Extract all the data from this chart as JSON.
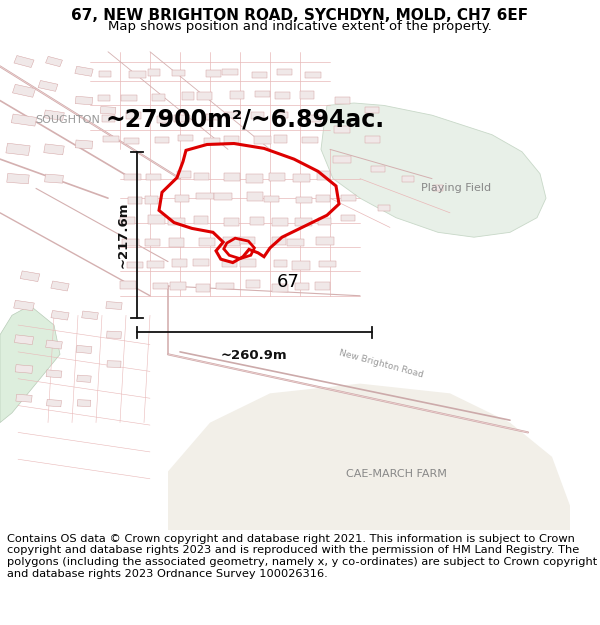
{
  "title_line1": "67, NEW BRIGHTON ROAD, SYCHDYN, MOLD, CH7 6EF",
  "title_line2": "Map shows position and indicative extent of the property.",
  "footer_text": "Contains OS data © Crown copyright and database right 2021. This information is subject to Crown copyright and database rights 2023 and is reproduced with the permission of HM Land Registry. The polygons (including the associated geometry, namely x, y co-ordinates) are subject to Crown copyright and database rights 2023 Ordnance Survey 100026316.",
  "area_label": "~27900m²/~6.894ac.",
  "soughton_label": "SOUGHTON",
  "playing_field_label": "Playing Field",
  "cae_march_label": "CAE-MARCH FARM",
  "label_67": "67",
  "dim_vertical": "~217.6m",
  "dim_horizontal": "~260.9m",
  "map_bg": "#f9f6f2",
  "road_color": "#e8b8b8",
  "building_color": "#e8c8c8",
  "building_outline": "#d4a4a4",
  "polygon_color": "#dd0000",
  "playing_field_color": "#e8f0e8",
  "playing_field_edge": "#c8d8c8",
  "green_area_color": "#e4ede4",
  "dim_color": "#111111",
  "label_color": "#666666",
  "title_fontsize": 11,
  "subtitle_fontsize": 10,
  "footer_fontsize": 8.5,
  "fig_width": 6.0,
  "fig_height": 6.25,
  "dpi": 100
}
